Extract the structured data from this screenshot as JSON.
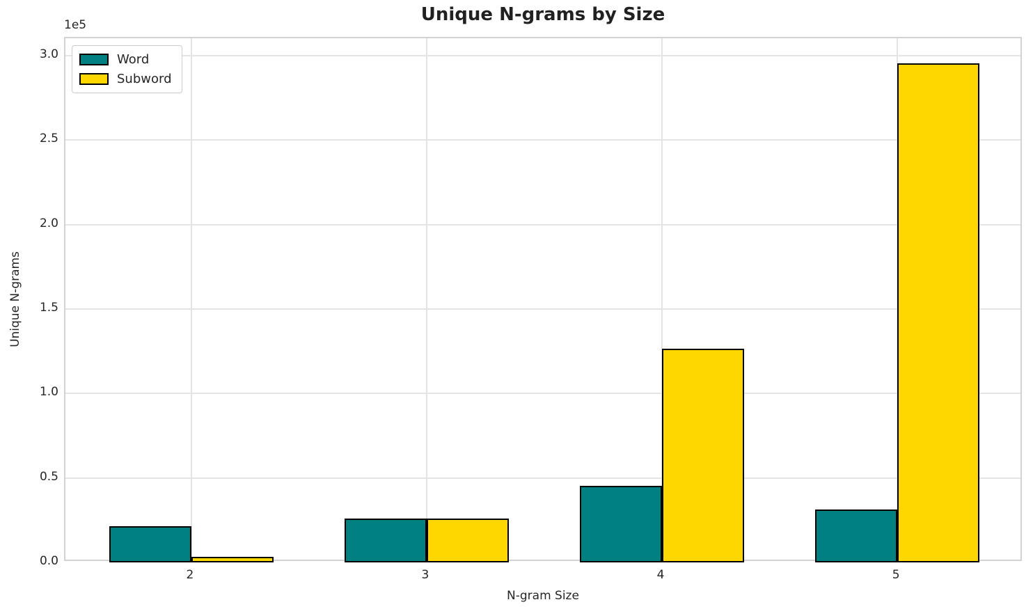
{
  "title": "Unique N-grams by Size",
  "axes": {
    "xlabel": "N-gram Size",
    "ylabel": "Unique N-grams",
    "offset_text": "1e5"
  },
  "legend": {
    "entries": [
      {
        "label": "Word",
        "color": "#008080"
      },
      {
        "label": "Subword",
        "color": "#FFD700"
      }
    ]
  },
  "chart_data": {
    "type": "bar",
    "title": "Unique N-grams by Size",
    "xlabel": "N-gram Size",
    "ylabel": "Unique N-grams",
    "categories": [
      "2",
      "3",
      "4",
      "5"
    ],
    "series": [
      {
        "name": "Word",
        "color": "#008080",
        "values": [
          21400,
          25800,
          45500,
          31300
        ]
      },
      {
        "name": "Subword",
        "color": "#FFD700",
        "values": [
          3300,
          26100,
          126400,
          295400
        ]
      }
    ],
    "bar_edge_color": "#000000",
    "bar_width_units": 0.35,
    "xlim": [
      -0.535,
      3.535
    ],
    "ylim": [
      0,
      310275
    ],
    "yticks": [
      0,
      50000,
      100000,
      150000,
      200000,
      250000,
      300000
    ],
    "ytick_labels": [
      "0.0",
      "0.5",
      "1.0",
      "1.5",
      "2.0",
      "2.5",
      "3.0"
    ],
    "y_offset_factor": "1e5",
    "grid": true,
    "legend_position": "upper left"
  }
}
